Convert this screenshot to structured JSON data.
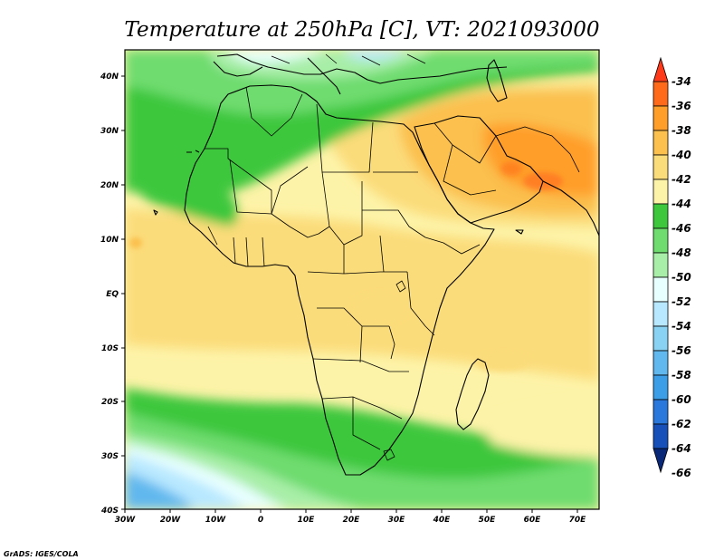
{
  "title": "Temperature at 250hPa [C], VT: 2021093000",
  "credit": "GrADS: IGES/COLA",
  "map": {
    "lon_labels": [
      "30W",
      "20W",
      "10W",
      "0",
      "10E",
      "20E",
      "30E",
      "40E",
      "50E",
      "60E",
      "70E"
    ],
    "lat_labels": [
      "40N",
      "30N",
      "20N",
      "10N",
      "EQ",
      "10S",
      "20S",
      "30S",
      "40S"
    ]
  },
  "colorbar": {
    "labels": [
      "-34",
      "-36",
      "-38",
      "-40",
      "-42",
      "-44",
      "-46",
      "-48",
      "-50",
      "-52",
      "-54",
      "-56",
      "-58",
      "-60",
      "-62",
      "-64",
      "-66"
    ],
    "colors": [
      "#ff3a1a",
      "#ff6a1a",
      "#ff9f2a",
      "#fbc04e",
      "#fbdc7a",
      "#fdf3a8",
      "#3dc73d",
      "#6edc6e",
      "#a8eea8",
      "#e8ffff",
      "#b8e8ff",
      "#8ad2f4",
      "#60b8ee",
      "#3d9ee8",
      "#2a78dc",
      "#1650b8",
      "#0a2878"
    ]
  },
  "chart_data": {
    "type": "heatmap",
    "title": "Temperature at 250hPa [C], VT: 2021093000",
    "variable": "Temperature at 250hPa",
    "units": "C",
    "valid_time": "2021093000",
    "x_range": [
      -30,
      75
    ],
    "y_range": [
      -40,
      45
    ],
    "xticks": [
      "30W",
      "20W",
      "10W",
      "0",
      "10E",
      "20E",
      "30E",
      "40E",
      "50E",
      "60E",
      "70E"
    ],
    "yticks": [
      "40N",
      "30N",
      "20N",
      "10N",
      "EQ",
      "10S",
      "20S",
      "30S",
      "40S"
    ],
    "color_levels": [
      -34,
      -36,
      -38,
      -40,
      -42,
      -44,
      -46,
      -48,
      -50,
      -52,
      -54,
      -56,
      -58,
      -60,
      -62,
      -64,
      -66
    ],
    "regions": [
      {
        "region": "Arabian Peninsula / Persian Gulf",
        "value_range": [
          -40,
          -38
        ]
      },
      {
        "region": "Northeast Africa (Egypt, Sudan)",
        "value_range": [
          -42,
          -40
        ]
      },
      {
        "region": "Tropical Africa and adjacent oceans",
        "value_range": [
          -44,
          -42
        ]
      },
      {
        "region": "Sahara / Mediterranean band",
        "value_range": [
          -48,
          -44
        ]
      },
      {
        "region": "Southern Africa",
        "value_range": [
          -48,
          -44
        ]
      },
      {
        "region": "South Atlantic near 35S",
        "value_range": [
          -56,
          -50
        ]
      }
    ]
  }
}
